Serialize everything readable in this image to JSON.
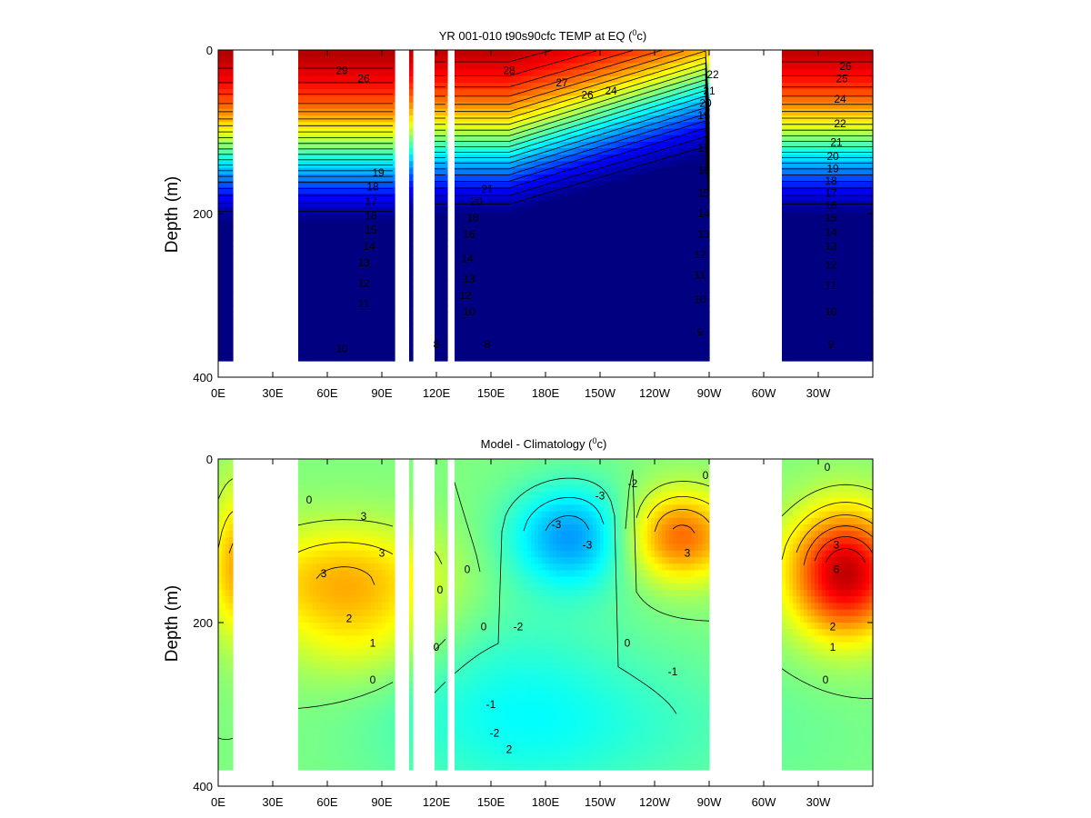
{
  "chart_data": [
    {
      "type": "heatmap",
      "title": "YR 001-010 t90s90cfc TEMP at EQ (",
      "title_sup": "0",
      "title_unit": "c)",
      "ylabel": "Depth (m)",
      "xlabel": "",
      "x_tick_labels": [
        "0E",
        "30E",
        "60E",
        "90E",
        "120E",
        "150E",
        "180E",
        "150W",
        "120W",
        "90W",
        "60W",
        "30W"
      ],
      "x_tick_lon": [
        0,
        30,
        60,
        90,
        120,
        150,
        180,
        210,
        240,
        270,
        300,
        330
      ],
      "xlim": [
        0,
        360
      ],
      "y_tick_labels": [
        "0",
        "200",
        "400"
      ],
      "ylim": [
        0,
        400
      ],
      "y_reversed": true,
      "max_depth_m": 380,
      "colormap": "jet",
      "color_range": [
        7,
        30
      ],
      "ocean_lon_ranges": [
        [
          0,
          8
        ],
        [
          44,
          97
        ],
        [
          105,
          107
        ],
        [
          119,
          126
        ],
        [
          130,
          270
        ],
        [
          310,
          360
        ]
      ],
      "contour_labels": [
        {
          "text": "29",
          "lon": 68,
          "depth": 25
        },
        {
          "text": "26",
          "lon": 80,
          "depth": 35
        },
        {
          "text": "19",
          "lon": 88,
          "depth": 150
        },
        {
          "text": "18",
          "lon": 85,
          "depth": 167
        },
        {
          "text": "17",
          "lon": 84,
          "depth": 185
        },
        {
          "text": "16",
          "lon": 84,
          "depth": 203
        },
        {
          "text": "15",
          "lon": 84,
          "depth": 220
        },
        {
          "text": "14",
          "lon": 83,
          "depth": 240
        },
        {
          "text": "13",
          "lon": 80,
          "depth": 260
        },
        {
          "text": "12",
          "lon": 80,
          "depth": 285
        },
        {
          "text": "11",
          "lon": 80,
          "depth": 310
        },
        {
          "text": "10",
          "lon": 68,
          "depth": 365
        },
        {
          "text": "8",
          "lon": 120,
          "depth": 360
        },
        {
          "text": "28",
          "lon": 160,
          "depth": 25
        },
        {
          "text": "27",
          "lon": 189,
          "depth": 40
        },
        {
          "text": "26",
          "lon": 203,
          "depth": 55
        },
        {
          "text": "24",
          "lon": 216,
          "depth": 50
        },
        {
          "text": "22",
          "lon": 272,
          "depth": 30
        },
        {
          "text": "21",
          "lon": 270,
          "depth": 50
        },
        {
          "text": "20",
          "lon": 268,
          "depth": 65
        },
        {
          "text": "19",
          "lon": 267,
          "depth": 80
        },
        {
          "text": "17",
          "lon": 267,
          "depth": 120
        },
        {
          "text": "16",
          "lon": 267,
          "depth": 147
        },
        {
          "text": "15",
          "lon": 267,
          "depth": 175
        },
        {
          "text": "14",
          "lon": 267,
          "depth": 200
        },
        {
          "text": "13",
          "lon": 267,
          "depth": 225
        },
        {
          "text": "12",
          "lon": 265,
          "depth": 250
        },
        {
          "text": "11",
          "lon": 265,
          "depth": 275
        },
        {
          "text": "10",
          "lon": 265,
          "depth": 305
        },
        {
          "text": "9",
          "lon": 265,
          "depth": 345
        },
        {
          "text": "21",
          "lon": 148,
          "depth": 170
        },
        {
          "text": "20",
          "lon": 142,
          "depth": 185
        },
        {
          "text": "18",
          "lon": 140,
          "depth": 205
        },
        {
          "text": "16",
          "lon": 138,
          "depth": 225
        },
        {
          "text": "14",
          "lon": 137,
          "depth": 255
        },
        {
          "text": "13",
          "lon": 138,
          "depth": 280
        },
        {
          "text": "12",
          "lon": 136,
          "depth": 300
        },
        {
          "text": "10",
          "lon": 138,
          "depth": 320
        },
        {
          "text": "8",
          "lon": 148,
          "depth": 360
        },
        {
          "text": "26",
          "lon": 345,
          "depth": 20
        },
        {
          "text": "25",
          "lon": 343,
          "depth": 35
        },
        {
          "text": "24",
          "lon": 342,
          "depth": 60
        },
        {
          "text": "22",
          "lon": 342,
          "depth": 90
        },
        {
          "text": "21",
          "lon": 340,
          "depth": 113
        },
        {
          "text": "20",
          "lon": 338,
          "depth": 130
        },
        {
          "text": "19",
          "lon": 338,
          "depth": 145
        },
        {
          "text": "18",
          "lon": 337,
          "depth": 160
        },
        {
          "text": "17",
          "lon": 337,
          "depth": 175
        },
        {
          "text": "16",
          "lon": 337,
          "depth": 190
        },
        {
          "text": "15",
          "lon": 337,
          "depth": 205
        },
        {
          "text": "14",
          "lon": 337,
          "depth": 223
        },
        {
          "text": "13",
          "lon": 337,
          "depth": 240
        },
        {
          "text": "12",
          "lon": 337,
          "depth": 263
        },
        {
          "text": "11",
          "lon": 337,
          "depth": 288
        },
        {
          "text": "10",
          "lon": 337,
          "depth": 320
        },
        {
          "text": "9",
          "lon": 337,
          "depth": 360
        }
      ]
    },
    {
      "type": "heatmap",
      "title": "Model - Climatology (",
      "title_sup": "0",
      "title_unit": "c)",
      "ylabel": "Depth (m)",
      "xlabel": "",
      "x_tick_labels": [
        "0E",
        "30E",
        "60E",
        "90E",
        "120E",
        "150E",
        "180E",
        "150W",
        "120W",
        "90W",
        "60W",
        "30W"
      ],
      "x_tick_lon": [
        0,
        30,
        60,
        90,
        120,
        150,
        180,
        210,
        240,
        270,
        300,
        330
      ],
      "xlim": [
        0,
        360
      ],
      "y_tick_labels": [
        "0",
        "200",
        "400"
      ],
      "ylim": [
        0,
        400
      ],
      "y_reversed": true,
      "max_depth_m": 380,
      "colormap": "jet",
      "color_range": [
        -8,
        8
      ],
      "ocean_lon_ranges": [
        [
          0,
          8
        ],
        [
          44,
          97
        ],
        [
          105,
          107
        ],
        [
          119,
          126
        ],
        [
          130,
          270
        ],
        [
          310,
          360
        ]
      ],
      "contour_labels": [
        {
          "text": "3",
          "lon": 58,
          "depth": 140
        },
        {
          "text": "3",
          "lon": 80,
          "depth": 70
        },
        {
          "text": "3",
          "lon": 90,
          "depth": 115
        },
        {
          "text": "2",
          "lon": 72,
          "depth": 195
        },
        {
          "text": "1",
          "lon": 85,
          "depth": 225
        },
        {
          "text": "0",
          "lon": 85,
          "depth": 270
        },
        {
          "text": "0",
          "lon": 50,
          "depth": 50
        },
        {
          "text": "0",
          "lon": 122,
          "depth": 160
        },
        {
          "text": "0",
          "lon": 120,
          "depth": 230
        },
        {
          "text": "0",
          "lon": 137,
          "depth": 135
        },
        {
          "text": "0",
          "lon": 146,
          "depth": 205
        },
        {
          "text": "-2",
          "lon": 165,
          "depth": 205
        },
        {
          "text": "-1",
          "lon": 150,
          "depth": 300
        },
        {
          "text": "-2",
          "lon": 152,
          "depth": 335
        },
        {
          "text": "2",
          "lon": 160,
          "depth": 355
        },
        {
          "text": "-3",
          "lon": 186,
          "depth": 80
        },
        {
          "text": "-3",
          "lon": 210,
          "depth": 45
        },
        {
          "text": "-3",
          "lon": 203,
          "depth": 105
        },
        {
          "text": "-2",
          "lon": 228,
          "depth": 30
        },
        {
          "text": "3",
          "lon": 258,
          "depth": 115
        },
        {
          "text": "0",
          "lon": 225,
          "depth": 225
        },
        {
          "text": "-1",
          "lon": 250,
          "depth": 260
        },
        {
          "text": "0",
          "lon": 268,
          "depth": 20
        },
        {
          "text": "0",
          "lon": 335,
          "depth": 10
        },
        {
          "text": "3",
          "lon": 340,
          "depth": 105
        },
        {
          "text": "6",
          "lon": 340,
          "depth": 135
        },
        {
          "text": "2",
          "lon": 338,
          "depth": 205
        },
        {
          "text": "1",
          "lon": 338,
          "depth": 230
        },
        {
          "text": "0",
          "lon": 334,
          "depth": 270
        }
      ]
    }
  ]
}
